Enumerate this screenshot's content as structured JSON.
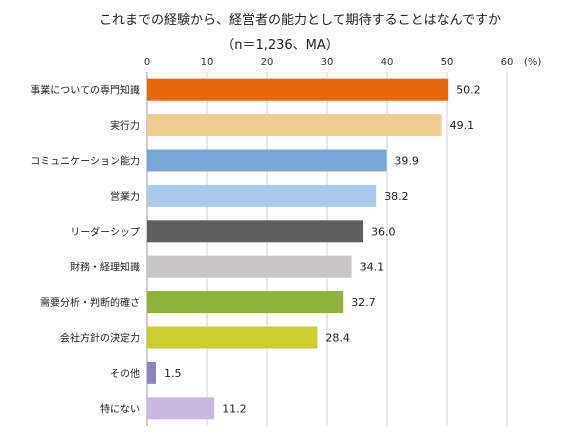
{
  "chart_data": {
    "type": "bar",
    "orientation": "horizontal",
    "title": "これまでの経験から、経営者の能力として期待することはなんですか",
    "subtitle": "（n＝1,236、MA）",
    "unit": "(%)",
    "xlim": [
      0,
      60
    ],
    "ticks": [
      0,
      10,
      20,
      30,
      40,
      50,
      60
    ],
    "grid": true,
    "categories": [
      "事業についての専門知識",
      "実行力",
      "コミュニケーション能力",
      "営業力",
      "リーダーシップ",
      "財務・経理知識",
      "需要分析・判断的確さ",
      "会社方針の決定力",
      "その他",
      "特にない"
    ],
    "values": [
      50.2,
      49.1,
      39.9,
      38.2,
      36.0,
      34.1,
      32.7,
      28.4,
      1.5,
      11.2
    ],
    "value_labels": [
      "50.2",
      "49.1",
      "39.9",
      "38.2",
      "36.0",
      "34.1",
      "32.7",
      "28.4",
      "1.5",
      "11.2"
    ],
    "colors": [
      "#E8660A",
      "#EFCF91",
      "#79A8D6",
      "#A8CBEC",
      "#5F5F5F",
      "#C8C6C6",
      "#8EB23A",
      "#C9CD2F",
      "#8C85C2",
      "#C9B8DF"
    ]
  }
}
